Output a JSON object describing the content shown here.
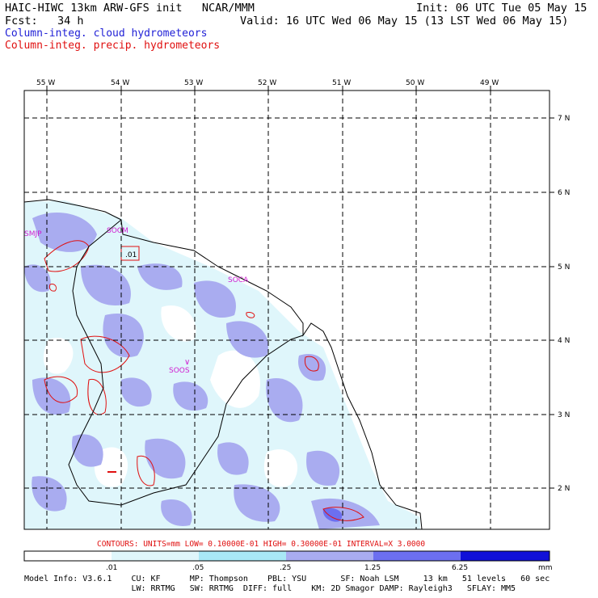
{
  "header": {
    "model_line": "HAIC-HIWC 13km ARW-GFS init   NCAR/MMM",
    "fcst_line": "Fcst:   34 h",
    "init_line": "Init: 06 UTC Tue 05 May 15",
    "valid_line": "Valid: 16 UTC Wed 06 May 15 (13 LST Wed 06 May 15)",
    "field1": "Column-integ. cloud hydrometeors",
    "field2": "Column-integ. precip. hydrometeors",
    "field1_color": "#1f1fd6",
    "field2_color": "#e01010"
  },
  "map": {
    "lon_labels": [
      "55 W",
      "54 W",
      "53 W",
      "52 W",
      "51 W",
      "50 W",
      "49 W"
    ],
    "lat_labels": [
      "7 N",
      "6 N",
      "5 N",
      "4 N",
      "3 N",
      "2 N"
    ],
    "stations": [
      "SMJP",
      "SOCM",
      "SOCA",
      "SOOS"
    ],
    "contour_label": ".01",
    "colors": {
      "fill_light": "#dff6fb",
      "fill_mid": "#a9acf0",
      "contour": "#e01010",
      "grid": "#000000"
    }
  },
  "contours_caption": "CONTOURS:  UNITS=mm  LOW= 0.10000E-01  HIGH= 0.30000E-01  INTERVAL=X  3.0000",
  "colorbar": {
    "labels": [
      ".01",
      ".05",
      ".25",
      "1.25",
      "6.25",
      "mm"
    ],
    "colors": [
      "#ffffff",
      "#dff6fb",
      "#a9e8f6",
      "#a9acf0",
      "#6c6ff0",
      "#3434e6",
      "#1010d8"
    ]
  },
  "footer": {
    "line1": "Model Info: V3.6.1    CU: KF      MP: Thompson    PBL: YSU       SF: Noah LSM     13 km   51 levels   60 sec",
    "line2": "                      LW: RRTMG   SW: RRTMG  DIFF: full    KM: 2D Smagor DAMP: Rayleigh3   SFLAY: MM5"
  }
}
